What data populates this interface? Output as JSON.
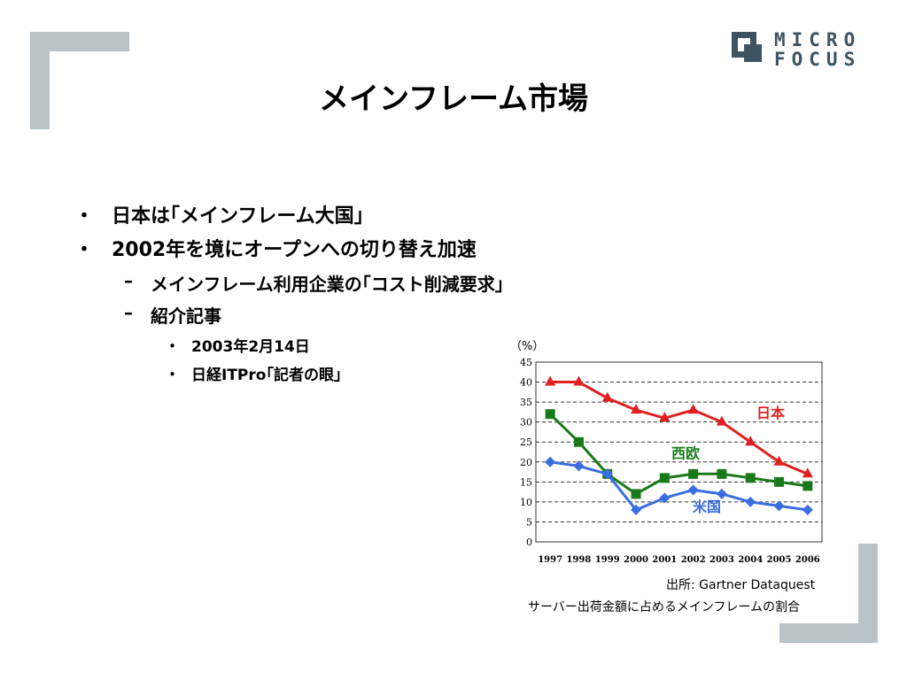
{
  "title": "メインフレーム市場",
  "logo": {
    "line1": "MICRO",
    "line2": "FOCUS"
  },
  "bullets": [
    {
      "text": "日本は｢メインフレーム大国｣"
    },
    {
      "text": "2002年を境にオープンへの切り替え加速"
    }
  ],
  "sub_bullets": [
    {
      "text": "メインフレーム利用企業の｢コスト削減要求｣"
    },
    {
      "text": "紹介記事"
    }
  ],
  "sub_sub_bullets": [
    {
      "text": "2003年2月14日"
    },
    {
      "text": "日経ITPro｢記者の眼｣"
    }
  ],
  "markers": {
    "level1": "・",
    "level2": "–",
    "level3": "・"
  },
  "chart_data": {
    "type": "line",
    "ylabel": "（%）",
    "ylim": [
      0,
      45
    ],
    "y_ticks": [
      0,
      5,
      10,
      15,
      20,
      25,
      30,
      35,
      40,
      45
    ],
    "categories": [
      "1997",
      "1998",
      "1999",
      "2000",
      "2001",
      "2002",
      "2003",
      "2004",
      "2005",
      "2006"
    ],
    "grid": "horizontal dashed",
    "series": [
      {
        "name": "日本",
        "color": "#e02020",
        "marker": "triangle",
        "values": [
          40,
          40,
          36,
          33,
          31,
          33,
          30,
          25,
          20,
          17
        ]
      },
      {
        "name": "西欧",
        "color": "#1a7a1a",
        "marker": "square",
        "values": [
          32,
          25,
          17,
          12,
          16,
          17,
          17,
          16,
          15,
          14
        ]
      },
      {
        "name": "米国",
        "color": "#3a6ee0",
        "marker": "diamond",
        "values": [
          20,
          19,
          17,
          8,
          11,
          13,
          12,
          10,
          9,
          8
        ]
      }
    ]
  },
  "chart_caption": {
    "source": "出所: Gartner Dataquest",
    "description": "サーバー出荷金額に占めるメインフレームの割合"
  }
}
